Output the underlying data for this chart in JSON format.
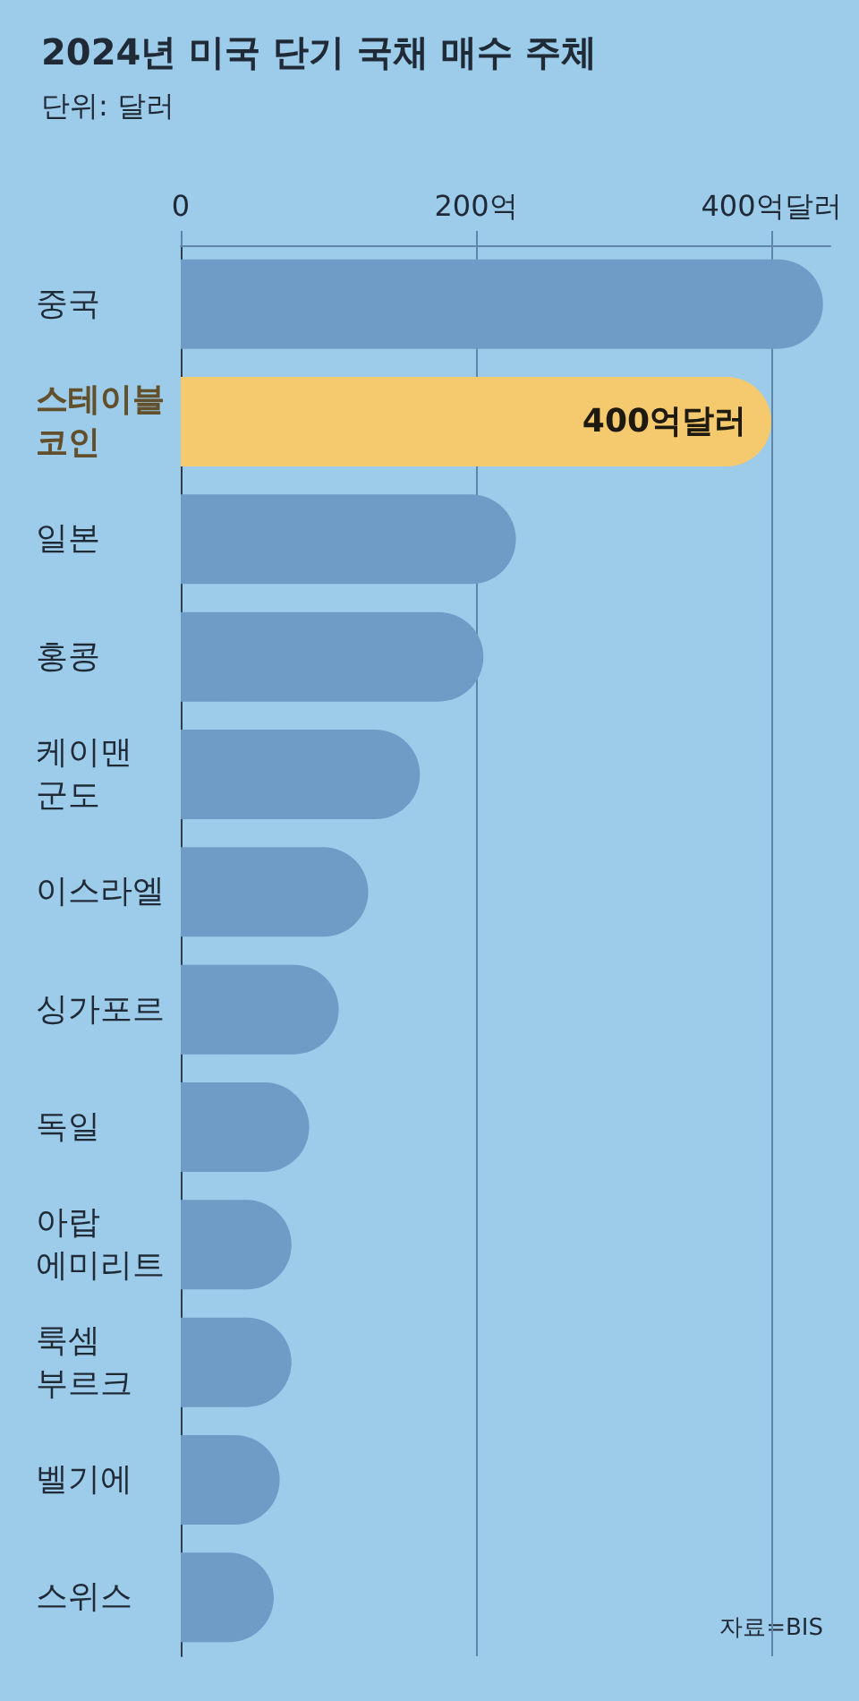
{
  "chart_data": {
    "type": "bar",
    "orientation": "horizontal",
    "title": "2024년 미국 단기 국채 매수 주체",
    "subtitle": "단위: 달러",
    "annotations": [
      "자료=BIS"
    ],
    "categories": [
      "중국",
      "스테이블\n코인",
      "일본",
      "홍콩",
      "케이맨\n군도",
      "이스라엘",
      "싱가포르",
      "독일",
      "아랍\n에미리트",
      "룩셈\n부르크",
      "벨기에",
      "스위스"
    ],
    "values": [
      435,
      400,
      227,
      205,
      162,
      127,
      107,
      87,
      75,
      75,
      67,
      63
    ],
    "colors": [
      "#6f9cc6",
      "#f5c96e",
      "#6f9cc6",
      "#6f9cc6",
      "#6f9cc6",
      "#6f9cc6",
      "#6f9cc6",
      "#6f9cc6",
      "#6f9cc6",
      "#6f9cc6",
      "#6f9cc6",
      "#6f9cc6"
    ],
    "value_labels": [
      null,
      "400억달러",
      null,
      null,
      null,
      null,
      null,
      null,
      null,
      null,
      null,
      null
    ],
    "xlim": [
      0,
      440
    ],
    "xticks": [
      0,
      {
        "value": 200,
        "label": "200억"
      },
      {
        "value": 400,
        "label": "400억달러"
      }
    ],
    "grid": "x"
  }
}
